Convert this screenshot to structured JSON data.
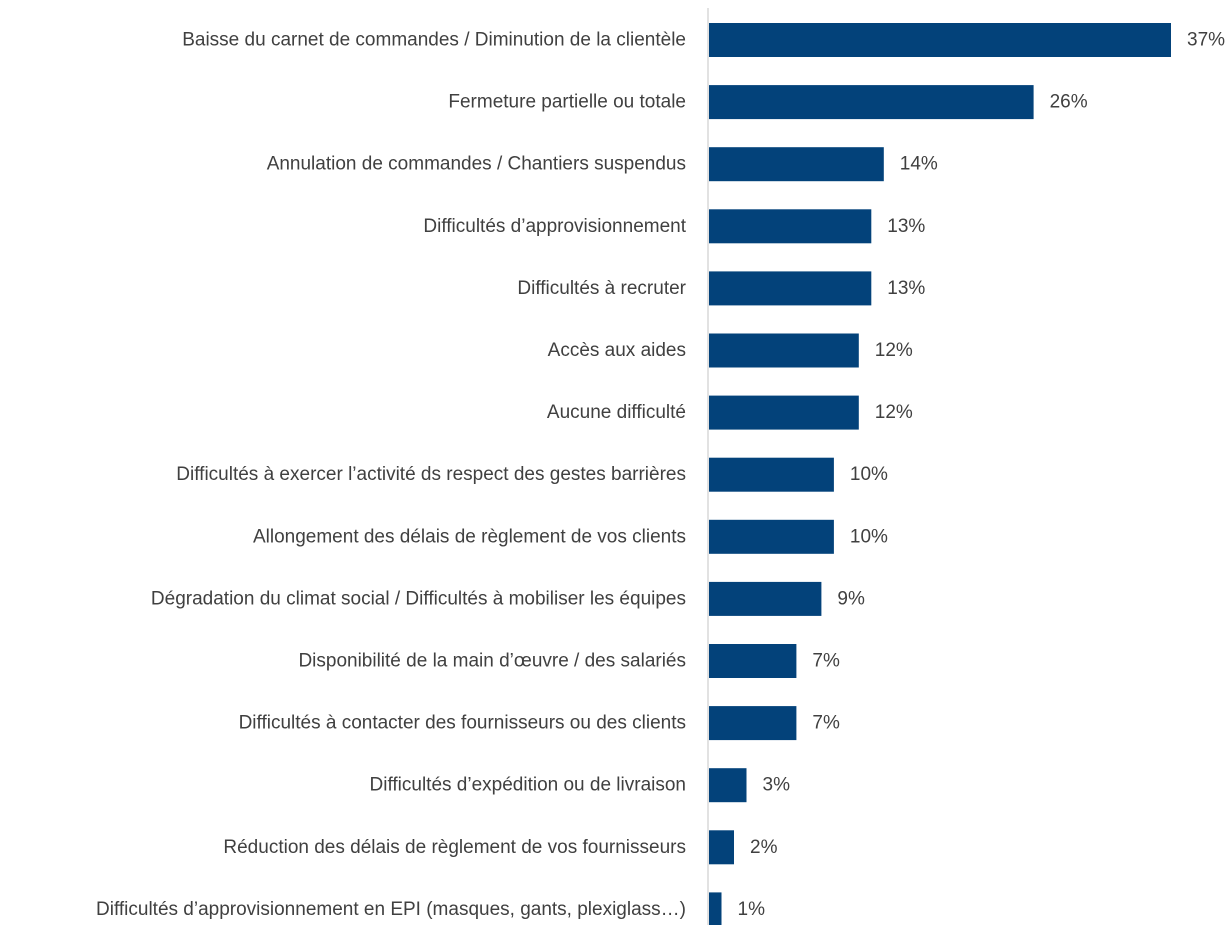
{
  "colors": {
    "bar": "#03427a",
    "axis": "#d9d9d9",
    "text": "#404040"
  },
  "chart_data": {
    "type": "bar",
    "orientation": "horizontal",
    "title": "",
    "xlabel": "",
    "ylabel": "",
    "xlim": [
      0,
      37
    ],
    "grid": false,
    "legend": "none",
    "categories": [
      "Baisse du carnet de commandes / Diminution de la clientèle",
      "Fermeture partielle ou totale",
      "Annulation de commandes / Chantiers suspendus",
      "Difficultés d’approvisionnement",
      "Difficultés à recruter",
      "Accès aux aides",
      "Aucune difficulté",
      "Difficultés à exercer l’activité ds respect des gestes barrières",
      "Allongement des délais de règlement de vos clients",
      "Dégradation du climat social / Difficultés à mobiliser les équipes",
      "Disponibilité de la main d’œuvre / des salariés",
      "Difficultés à contacter des fournisseurs ou des clients",
      "Difficultés d’expédition ou de livraison",
      "Réduction des délais de règlement de vos fournisseurs",
      "Difficultés d’approvisionnement en EPI (masques, gants, plexiglass…)"
    ],
    "values": [
      37,
      26,
      14,
      13,
      13,
      12,
      12,
      10,
      10,
      9,
      7,
      7,
      3,
      2,
      1
    ],
    "value_labels": [
      "37%",
      "26%",
      "14%",
      "13%",
      "13%",
      "12%",
      "12%",
      "10%",
      "10%",
      "9%",
      "7%",
      "7%",
      "3%",
      "2%",
      "1%"
    ]
  }
}
